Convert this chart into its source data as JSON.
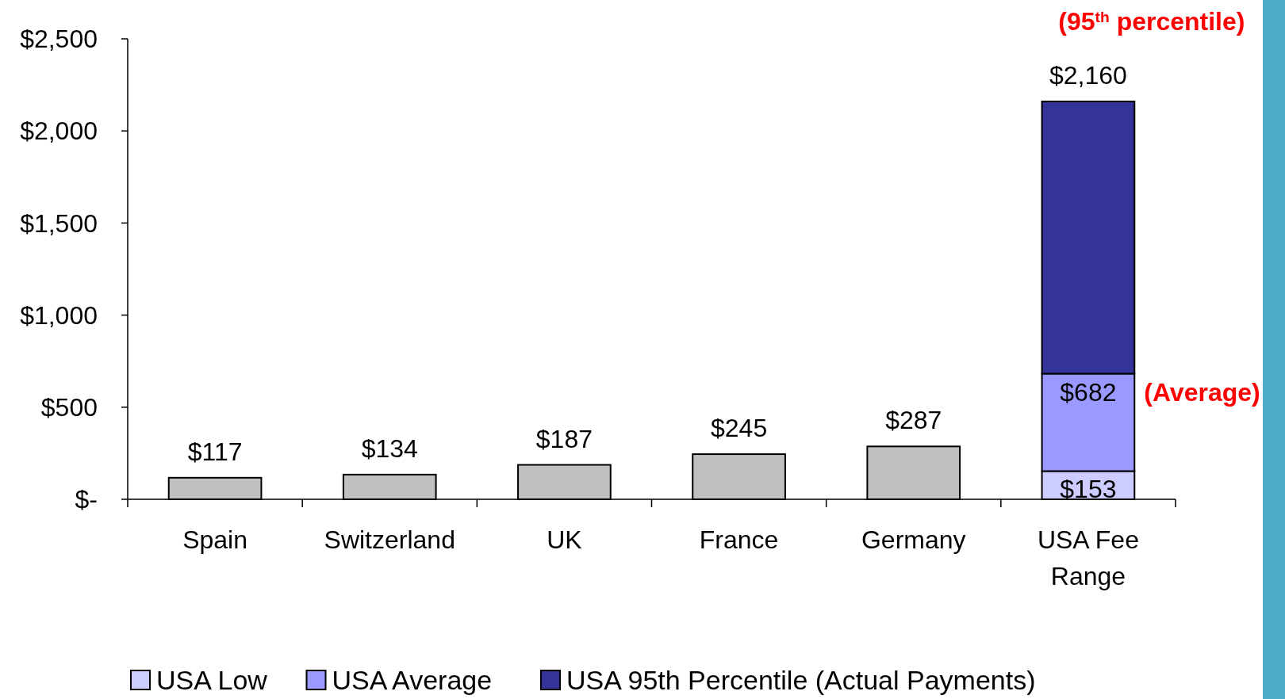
{
  "chart_data": {
    "type": "bar",
    "stacked": true,
    "categories": [
      "Spain",
      "Switzerland",
      "UK",
      "France",
      "Germany",
      "USA Fee Range"
    ],
    "series": [
      {
        "color": "#c0c0c0",
        "values": [
          117,
          134,
          187,
          245,
          287,
          null
        ],
        "value_labels": [
          "$117",
          "$134",
          "$187",
          "$245",
          "$287",
          null
        ]
      },
      {
        "name": "USA Low",
        "color": "#ccccff",
        "values": [
          null,
          null,
          null,
          null,
          null,
          153
        ],
        "value_labels": [
          null,
          null,
          null,
          null,
          null,
          "$153"
        ]
      },
      {
        "name": "USA Average",
        "color": "#9999ff",
        "values": [
          null,
          null,
          null,
          null,
          null,
          529
        ]
      },
      {
        "name": "USA 95th Percentile (Actual Payments)",
        "color": "#333399",
        "values": [
          null,
          null,
          null,
          null,
          null,
          1478
        ]
      }
    ],
    "ylim": [
      0,
      2500
    ],
    "yticks": [
      {
        "value": 0,
        "label": "$-"
      },
      {
        "value": 500,
        "label": "$500"
      },
      {
        "value": 1000,
        "label": "$1,000"
      },
      {
        "value": 1500,
        "label": "$1,500"
      },
      {
        "value": 2000,
        "label": "$2,000"
      },
      {
        "value": 2500,
        "label": "$2,500"
      }
    ],
    "annotations": [
      {
        "text": "(95$^{th}$ percentile)",
        "x": "USA Fee Range",
        "y": 2160
      },
      {
        "text": "(Average)",
        "x": "USA Fee Range",
        "y": 682
      },
      {
        "text": "$682",
        "x": "USA Fee Range",
        "y": 682
      },
      {
        "text": "$2,160",
        "x": "USA Fee Range",
        "y": 2160
      }
    ],
    "grid": false,
    "legend": "bottom"
  }
}
